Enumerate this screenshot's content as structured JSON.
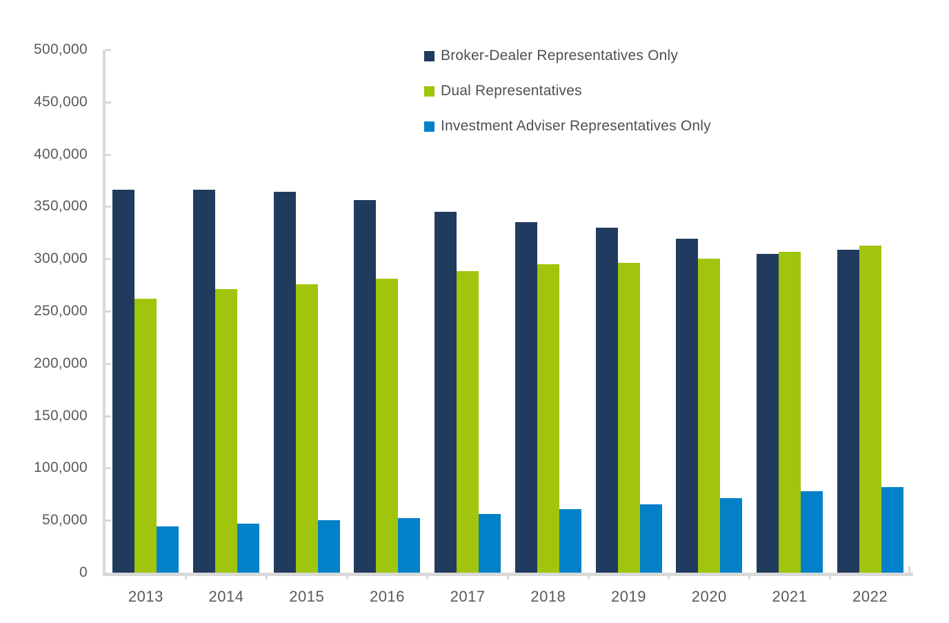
{
  "chart_data": {
    "type": "bar",
    "title": "",
    "xlabel": "",
    "ylabel": "",
    "categories": [
      "2013",
      "2014",
      "2015",
      "2016",
      "2017",
      "2018",
      "2019",
      "2020",
      "2021",
      "2022"
    ],
    "series": [
      {
        "name": "Broker-Dealer Representatives Only",
        "color": "#213B5E",
        "values": [
          366000,
          366000,
          364000,
          356000,
          345000,
          335000,
          330000,
          319000,
          305000,
          309000
        ]
      },
      {
        "name": "Dual Representatives",
        "color": "#A0C50C",
        "values": [
          262000,
          271000,
          276000,
          281000,
          288000,
          295000,
          296000,
          300000,
          307000,
          313000
        ]
      },
      {
        "name": "Investment Adviser Representatives Only",
        "color": "#0281C9",
        "values": [
          44000,
          47000,
          50000,
          52000,
          56000,
          61000,
          65000,
          71000,
          78000,
          82000
        ]
      }
    ],
    "ylim": [
      0,
      500000
    ],
    "y_tick_step": 50000,
    "y_tick_labels": [
      "500,000",
      "450,000",
      "400,000",
      "350,000",
      "300,000",
      "250,000",
      "200,000",
      "150,000",
      "100,000",
      "50,000",
      "0"
    ],
    "grid": false,
    "legend_position": "top-center"
  },
  "style": {
    "axis_color": "#D9D9D9",
    "tick_label_color": "#595959",
    "legend_text_color": "#4D4F52",
    "background": "#FFFFFF"
  }
}
